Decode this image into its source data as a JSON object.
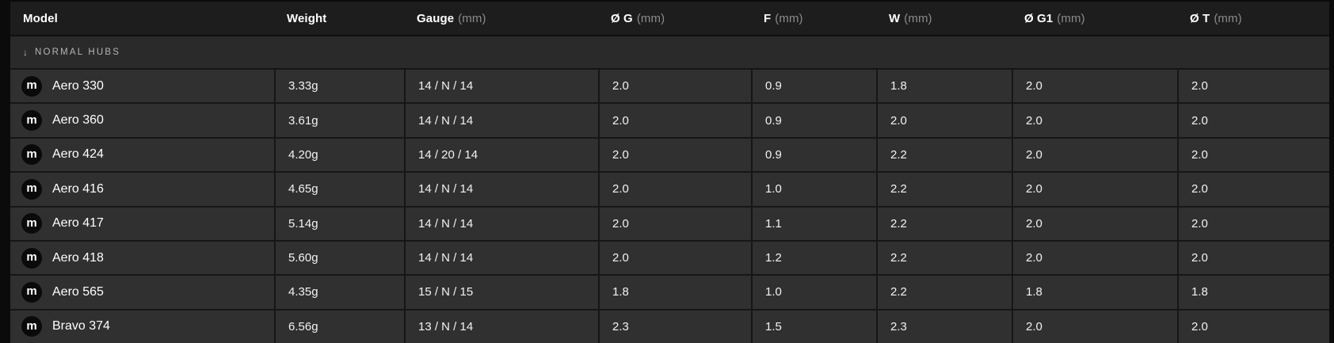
{
  "colors": {
    "page_bg": "#0b0b0b",
    "header_bg": "#1d1d1e",
    "section_bg": "#2a2a2b",
    "row_bg": "#303031",
    "border": "#161616",
    "text_primary": "#f2f2f2",
    "text_muted": "#8b8b8b",
    "section_text": "#b5b5b5",
    "badge_bg": "#0a0a0a",
    "badge_text": "#ffffff"
  },
  "table": {
    "brand_letter": "m",
    "columns": [
      {
        "label": "Model",
        "unit": ""
      },
      {
        "label": "Weight",
        "unit": ""
      },
      {
        "label": "Gauge",
        "unit": "(mm)"
      },
      {
        "label": "Ø G",
        "unit": "(mm)"
      },
      {
        "label": "F",
        "unit": "(mm)"
      },
      {
        "label": "W",
        "unit": "(mm)"
      },
      {
        "label": "Ø G1",
        "unit": "(mm)"
      },
      {
        "label": "Ø T",
        "unit": "(mm)"
      }
    ],
    "section": {
      "arrow": "↓",
      "label": "NORMAL HUBS"
    },
    "rows": [
      {
        "model": "Aero 330",
        "weight": "3.33g",
        "gauge": "14 / N / 14",
        "og": "2.0",
        "f": "0.9",
        "w": "1.8",
        "og1": "2.0",
        "ot": "2.0"
      },
      {
        "model": "Aero 360",
        "weight": "3.61g",
        "gauge": "14 / N / 14",
        "og": "2.0",
        "f": "0.9",
        "w": "2.0",
        "og1": "2.0",
        "ot": "2.0"
      },
      {
        "model": "Aero 424",
        "weight": "4.20g",
        "gauge": "14 / 20 / 14",
        "og": "2.0",
        "f": "0.9",
        "w": "2.2",
        "og1": "2.0",
        "ot": "2.0"
      },
      {
        "model": "Aero 416",
        "weight": "4.65g",
        "gauge": "14 / N / 14",
        "og": "2.0",
        "f": "1.0",
        "w": "2.2",
        "og1": "2.0",
        "ot": "2.0"
      },
      {
        "model": "Aero 417",
        "weight": "5.14g",
        "gauge": "14 / N / 14",
        "og": "2.0",
        "f": "1.1",
        "w": "2.2",
        "og1": "2.0",
        "ot": "2.0"
      },
      {
        "model": "Aero 418",
        "weight": "5.60g",
        "gauge": "14 / N / 14",
        "og": "2.0",
        "f": "1.2",
        "w": "2.2",
        "og1": "2.0",
        "ot": "2.0"
      },
      {
        "model": "Aero 565",
        "weight": "4.35g",
        "gauge": "15 / N / 15",
        "og": "1.8",
        "f": "1.0",
        "w": "2.2",
        "og1": "1.8",
        "ot": "1.8"
      },
      {
        "model": "Bravo 374",
        "weight": "6.56g",
        "gauge": "13 / N / 14",
        "og": "2.3",
        "f": "1.5",
        "w": "2.3",
        "og1": "2.0",
        "ot": "2.0"
      }
    ]
  }
}
